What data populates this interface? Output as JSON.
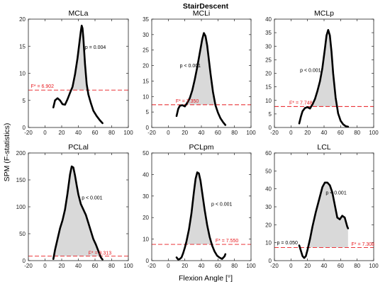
{
  "figure": {
    "title": "StairDescent",
    "xlabel": "Flexion Angle [°]",
    "ylabel": "SPM (F-statistics)"
  },
  "colors": {
    "curve": "#000000",
    "threshold": "#e8191e",
    "fill": "#d9d9d9"
  },
  "chart_data": [
    {
      "type": "line",
      "title": "MCLa",
      "xlim": [
        -20,
        100
      ],
      "ylim": [
        0,
        20
      ],
      "xticks": [
        -20,
        0,
        20,
        40,
        60,
        80,
        100
      ],
      "yticks": [
        0,
        5,
        10,
        15,
        20
      ],
      "threshold": 6.902,
      "threshold_label": "F* = 6.902",
      "pvalue_labels": [
        {
          "text": "p = 0.004",
          "x": 48,
          "y": 14.5
        }
      ],
      "threshold_label_pos": {
        "x": -17,
        "y": 7.3
      },
      "series": [
        {
          "x": [
            10,
            12,
            15,
            18,
            21,
            24,
            27,
            30,
            33,
            36,
            39,
            41,
            43,
            44,
            45,
            46,
            48,
            50,
            52,
            55,
            58,
            62,
            66,
            69
          ],
          "y": [
            3.7,
            5.0,
            5.4,
            5.0,
            4.3,
            4.2,
            5.2,
            6.4,
            7.5,
            9.8,
            12.8,
            15.3,
            17.8,
            18.8,
            18.3,
            16.5,
            11.7,
            8.0,
            6.1,
            4.5,
            3.1,
            2.1,
            1.3,
            0.8
          ]
        }
      ]
    },
    {
      "type": "line",
      "title": "MCLi",
      "xlim": [
        -20,
        100
      ],
      "ylim": [
        0,
        35
      ],
      "xticks": [
        -20,
        0,
        20,
        40,
        60,
        80,
        100
      ],
      "yticks": [
        0,
        5,
        10,
        15,
        20,
        25,
        30,
        35
      ],
      "threshold": 7.35,
      "threshold_label": "F* = 7.350",
      "pvalue_labels": [
        {
          "text": "p < 0.001",
          "x": 14,
          "y": 19.5
        }
      ],
      "threshold_label_pos": {
        "x": 9,
        "y": 8.0
      },
      "series": [
        {
          "x": [
            10,
            12,
            14,
            17,
            20,
            23,
            26,
            29,
            32,
            35,
            38,
            41,
            43,
            45,
            47,
            49,
            51,
            54,
            57,
            60,
            63,
            66,
            69
          ],
          "y": [
            3.7,
            6.0,
            7.0,
            7.2,
            6.8,
            8.0,
            9.5,
            12.0,
            15.5,
            19.5,
            24.0,
            28.5,
            30.5,
            29.5,
            26.5,
            22.0,
            17.5,
            11.5,
            7.2,
            4.8,
            3.0,
            1.8,
            0.8
          ]
        }
      ]
    },
    {
      "type": "line",
      "title": "MCLp",
      "xlim": [
        -20,
        100
      ],
      "ylim": [
        0,
        40
      ],
      "xticks": [
        -20,
        0,
        20,
        40,
        60,
        80,
        100
      ],
      "yticks": [
        0,
        5,
        10,
        15,
        20,
        25,
        30,
        35,
        40
      ],
      "threshold": 7.748,
      "threshold_label": "F* = 7.748",
      "pvalue_labels": [
        {
          "text": "p < 0.001",
          "x": 11,
          "y": 20.5
        }
      ],
      "threshold_label_pos": {
        "x": -2,
        "y": 8.5
      },
      "series": [
        {
          "x": [
            10,
            12,
            14,
            17,
            20,
            23,
            26,
            29,
            32,
            35,
            38,
            41,
            43,
            45,
            47,
            49,
            51,
            54,
            57,
            60,
            63,
            66,
            69
          ],
          "y": [
            1.5,
            4.0,
            6.0,
            7.2,
            7.5,
            7.0,
            8.5,
            10.5,
            13.5,
            17.0,
            22.0,
            29.0,
            34.0,
            36.0,
            34.0,
            28.0,
            20.0,
            11.0,
            5.2,
            2.5,
            1.2,
            0.5,
            0.3
          ]
        }
      ]
    },
    {
      "type": "line",
      "title": "PCLal",
      "xlim": [
        -20,
        100
      ],
      "ylim": [
        0,
        200
      ],
      "xticks": [
        -20,
        0,
        20,
        40,
        60,
        80,
        100
      ],
      "yticks": [
        0,
        50,
        100,
        150,
        200
      ],
      "threshold": 8.313,
      "threshold_label": "F* = 8.313",
      "pvalue_labels": [
        {
          "text": "p < 0.001",
          "x": 44,
          "y": 114
        }
      ],
      "threshold_label_pos": {
        "x": 52,
        "y": 11
      },
      "series": [
        {
          "x": [
            10,
            12,
            15,
            18,
            21,
            24,
            27,
            30,
            32,
            34,
            36,
            38,
            40,
            43,
            46,
            49,
            52,
            55,
            58,
            61,
            64,
            67,
            69
          ],
          "y": [
            3,
            20,
            40,
            60,
            75,
            95,
            125,
            160,
            175,
            173,
            158,
            140,
            123,
            105,
            95,
            85,
            70,
            55,
            40,
            30,
            18,
            6,
            2
          ]
        }
      ]
    },
    {
      "type": "line",
      "title": "PCLpm",
      "xlim": [
        -20,
        100
      ],
      "ylim": [
        0,
        50
      ],
      "xticks": [
        -20,
        0,
        20,
        40,
        60,
        80,
        100
      ],
      "yticks": [
        0,
        10,
        20,
        30,
        40,
        50
      ],
      "threshold": 7.55,
      "threshold_label": "F* = 7.550",
      "pvalue_labels": [
        {
          "text": "p < 0.001",
          "x": 52,
          "y": 25.5
        }
      ],
      "threshold_label_pos": {
        "x": 57,
        "y": 8.6
      },
      "series": [
        {
          "x": [
            10,
            12,
            14,
            16,
            18,
            20,
            22,
            25,
            28,
            31,
            33,
            35,
            37,
            39,
            41,
            44,
            47,
            50,
            53,
            56,
            59,
            62,
            65,
            68,
            69
          ],
          "y": [
            1.5,
            0.5,
            0.8,
            1.5,
            3.5,
            6.0,
            9.0,
            14.5,
            22.0,
            32.0,
            38.0,
            41.0,
            40.5,
            37.0,
            31.5,
            23.5,
            16.5,
            11.0,
            7.0,
            4.2,
            2.3,
            1.4,
            0.8,
            2.0,
            3.0
          ]
        }
      ]
    },
    {
      "type": "line",
      "title": "LCL",
      "xlim": [
        -20,
        100
      ],
      "ylim": [
        0,
        60
      ],
      "xticks": [
        -20,
        0,
        20,
        40,
        60,
        80,
        100
      ],
      "yticks": [
        0,
        10,
        20,
        30,
        40,
        50,
        60
      ],
      "threshold": 7.308,
      "threshold_label": "F* = 7.308",
      "pvalue_labels": [
        {
          "text": "p < 0.001",
          "x": 42,
          "y": 37
        },
        {
          "text": "p = 0.050",
          "x": -17,
          "y": 9
        }
      ],
      "threshold_label_pos": {
        "x": 73,
        "y": 8.3
      },
      "series": [
        {
          "x": [
            10,
            12,
            14,
            16,
            18,
            20,
            23,
            26,
            30,
            34,
            38,
            41,
            44,
            47,
            50,
            53,
            56,
            59,
            62,
            65,
            68,
            69
          ],
          "y": [
            8.5,
            5.5,
            2.5,
            1.5,
            2.5,
            6.0,
            12.0,
            19.0,
            27.0,
            34.0,
            41.0,
            43.5,
            43.5,
            42.0,
            38.0,
            31.0,
            24.0,
            23.0,
            25.0,
            24.0,
            19.0,
            18.0
          ]
        }
      ]
    }
  ]
}
